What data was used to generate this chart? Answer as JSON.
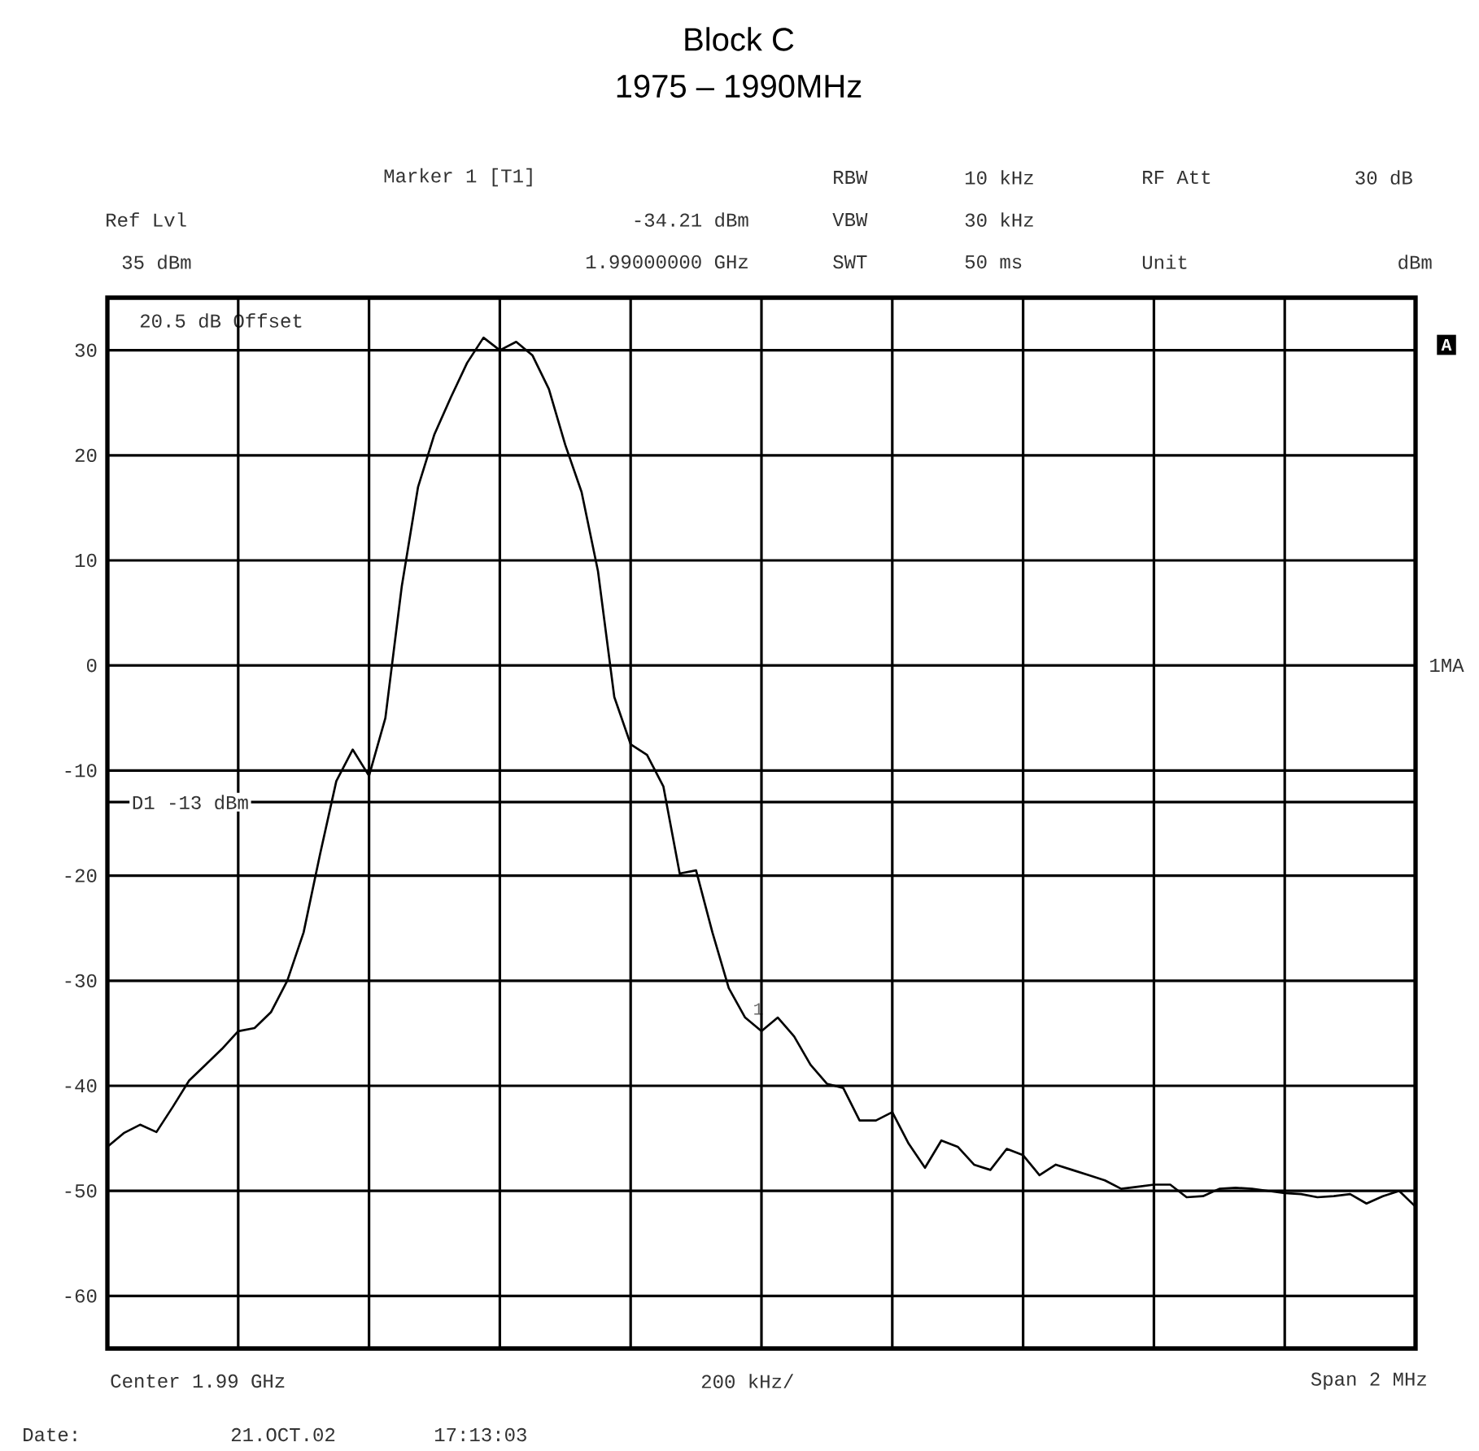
{
  "chart_data": {
    "type": "line",
    "title": "Block C",
    "subtitle": "1975 – 1990MHz",
    "categories": [
      null,
      null,
      null,
      null,
      null,
      null,
      null,
      null,
      null,
      null,
      null,
      null,
      null,
      null,
      null,
      null,
      null,
      null,
      null,
      null,
      null,
      null,
      null,
      null,
      null,
      null,
      null,
      null,
      null,
      null,
      null,
      null,
      null,
      null,
      null,
      null,
      null,
      null,
      null,
      null,
      null,
      null,
      null,
      null,
      null,
      null,
      null,
      null,
      null,
      null,
      null,
      null,
      null,
      null,
      null,
      null,
      null,
      null,
      null,
      null,
      null,
      null,
      null,
      null,
      null,
      null,
      null,
      null,
      null,
      null,
      null,
      null,
      null,
      null,
      null,
      null,
      null,
      null,
      null,
      null,
      null
    ],
    "series": [
      {
        "color": "#000000",
        "values": [
          -45.8,
          -44.5,
          -43.7,
          -44.4,
          -42,
          -39.5,
          -38,
          -36.5,
          -34.8,
          -34.5,
          -33,
          -30,
          -25.4,
          -18,
          -11,
          -8,
          -10.5,
          -5,
          7.5,
          17,
          22,
          25.5,
          28.8,
          31.2,
          30,
          30.8,
          29.5,
          26.3,
          21,
          16.5,
          9,
          -3,
          -7.5,
          -8.5,
          -11.5,
          -19.8,
          -19.5,
          -25.4,
          -30.7,
          -33.5,
          -34.8,
          -33.5,
          -35.3,
          -38,
          -39.8,
          -40.2,
          -43.3,
          -43.3,
          -42.5,
          -45.5,
          -47.8,
          -45.2,
          -45.8,
          -47.5,
          -48,
          -46,
          -46.6,
          -48.5,
          -47.5,
          -48,
          -48.5,
          -49,
          -49.8,
          -49.6,
          -49.4,
          -49.4,
          -50.6,
          -50.5,
          -49.8,
          -49.7,
          -49.8,
          -50,
          -50.2,
          -50.3,
          -50.6,
          -50.5,
          -50.3,
          -51.2,
          -50.5,
          -50,
          -51.5
        ]
      }
    ],
    "ylim": [
      -65,
      35
    ],
    "yticks": [
      {
        "value": 30,
        "label": "30"
      },
      {
        "value": 20,
        "label": "20"
      },
      {
        "value": 10,
        "label": "10"
      },
      {
        "value": 0,
        "label": "0"
      },
      {
        "value": -10,
        "label": "-10"
      },
      {
        "value": -20,
        "label": "-20"
      },
      {
        "value": -30,
        "label": "-30"
      },
      {
        "value": -40,
        "label": "-40"
      },
      {
        "value": -50,
        "label": "-50"
      },
      {
        "value": -60,
        "label": "-60"
      }
    ],
    "tick_labels": "y",
    "grid": true,
    "ref_lines": [
      {
        "axis": "y",
        "value": -13,
        "label": "D1 -13 dBm"
      }
    ],
    "annotations": [
      "Marker 1 [T1]",
      "RBW",
      "10 kHz",
      "RF Att",
      "30 dB",
      "Ref Lvl",
      "-34.21 dBm",
      "VBW",
      "30 kHz",
      "35 dBm",
      "1.99000000 GHz",
      "SWT",
      "50 ms",
      "Unit",
      "dBm",
      "20.5 dB Offset",
      "Center 1.99 GHz",
      "200 kHz/",
      "Span 2 MHz",
      "Date:",
      "21.OCT.02",
      "17:13:03",
      "A",
      "1MA",
      "1"
    ]
  }
}
